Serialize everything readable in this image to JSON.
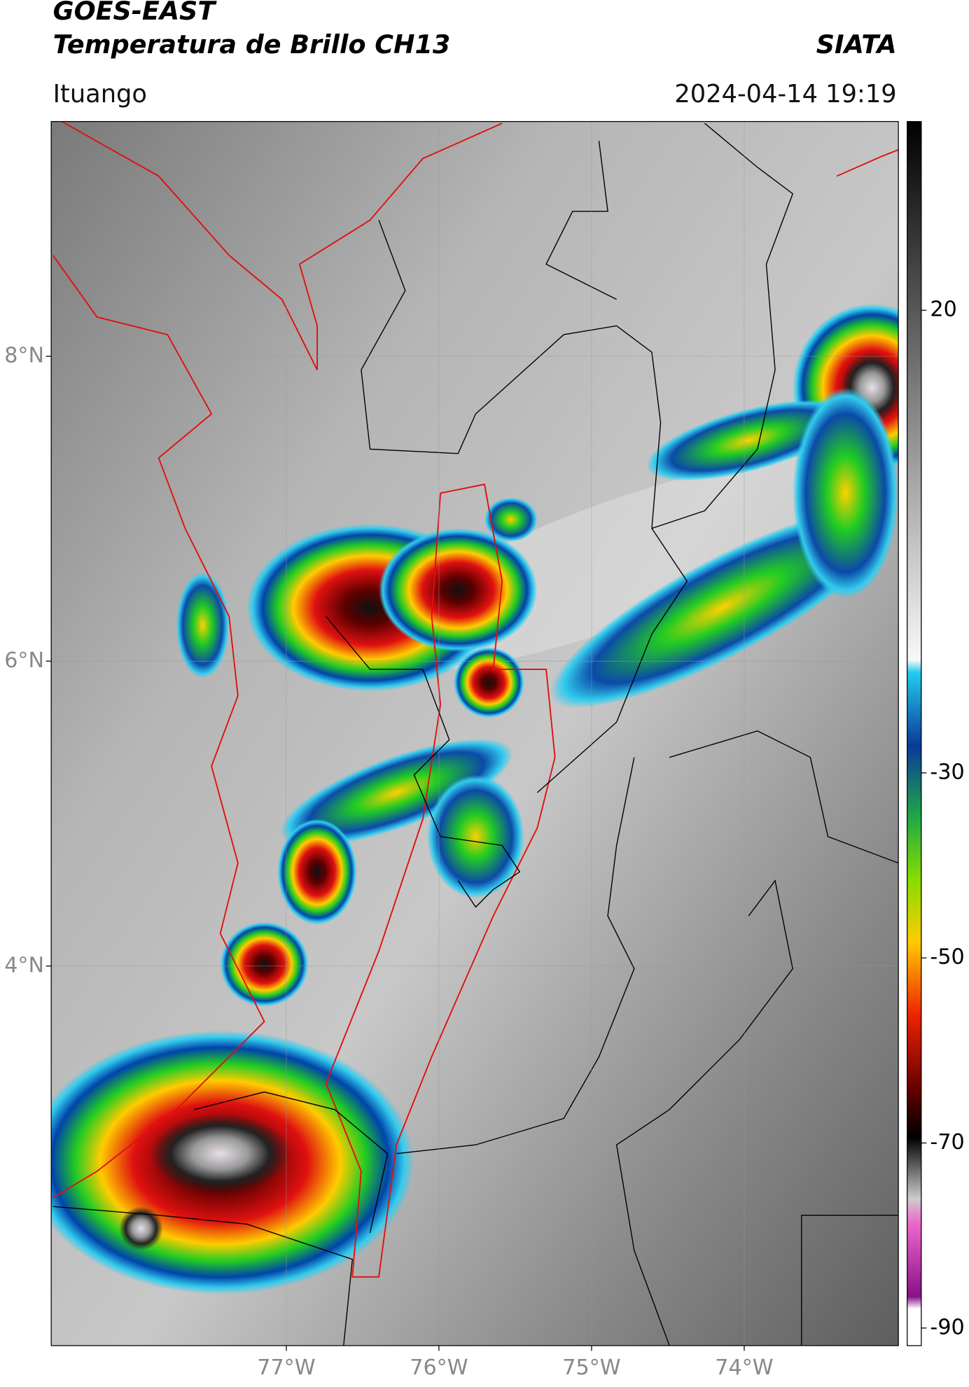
{
  "header": {
    "source": "GOES-EAST",
    "product": "Temperatura de Brillo CH13",
    "brand": "SIATA",
    "location": "Ituango",
    "datetime": "2024-04-14 19:19"
  },
  "map": {
    "xlim": [
      -78.54,
      -72.99
    ],
    "ylim": [
      1.51,
      9.54
    ],
    "xticks": [
      {
        "value": -77,
        "label": "77°W"
      },
      {
        "value": -76,
        "label": "76°W"
      },
      {
        "value": -75,
        "label": "75°W"
      },
      {
        "value": -74,
        "label": "74°W"
      }
    ],
    "yticks": [
      {
        "value": 8,
        "label": "8°N"
      },
      {
        "value": 6,
        "label": "6°N"
      },
      {
        "value": 4,
        "label": "4°N"
      }
    ]
  },
  "colorbar": {
    "lim": [
      -91.9,
      40.4
    ],
    "ticks": [
      20,
      -30,
      -50,
      -70,
      -90
    ]
  }
}
